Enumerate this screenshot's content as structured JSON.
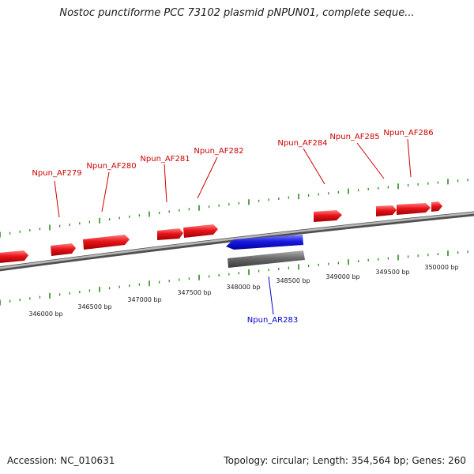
{
  "title": "Nostoc punctiforme PCC 73102 plasmid pNPUN01, complete seque...",
  "footer": {
    "accession": "Accession: NC_010631",
    "summary": "Topology: circular; Length: 354,564 bp; Genes: 260"
  },
  "colors": {
    "forward_gene": "#e8141b",
    "forward_gene_top": "#ff7a7a",
    "reverse_gene": "#1a1ae0",
    "reverse_gene_top": "#7a7aff",
    "pseudo": "#6b6b6b",
    "backbone": "#7a7a7a",
    "tick": "#2e8b1f",
    "gene_label": "#cc0000",
    "rna_label": "#0000cc"
  },
  "scale_labels": [
    "346000 bp",
    "346500 bp",
    "347000 bp",
    "347500 bp",
    "348000 bp",
    "348500 bp",
    "349000 bp",
    "349500 bp",
    "350000 bp"
  ],
  "gene_labels": [
    {
      "id": "Npun_AF279",
      "strand": "forward"
    },
    {
      "id": "Npun_AF280",
      "strand": "forward"
    },
    {
      "id": "Npun_AF281",
      "strand": "forward"
    },
    {
      "id": "Npun_AF282",
      "strand": "forward"
    },
    {
      "id": "Npun_AF284",
      "strand": "forward"
    },
    {
      "id": "Npun_AF285",
      "strand": "forward"
    },
    {
      "id": "Npun_AF286",
      "strand": "forward"
    },
    {
      "id": "Npun_AR283",
      "strand": "reverse"
    }
  ]
}
